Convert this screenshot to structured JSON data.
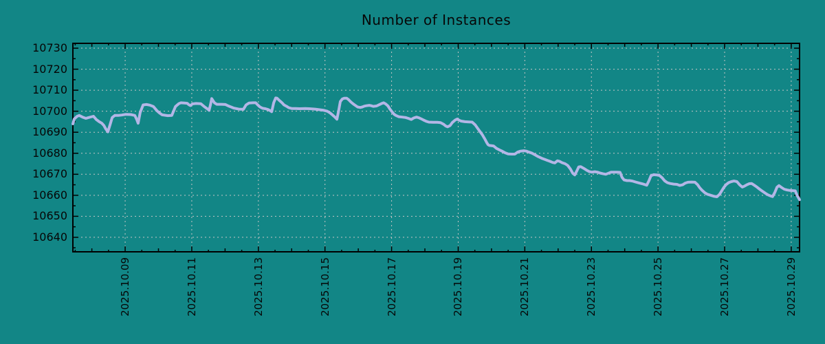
{
  "title": "Number of Instances",
  "chart_data": {
    "type": "line",
    "title": "Number of Instances",
    "legend": false,
    "grid": true,
    "colors": {
      "background": "#128686",
      "line": "#b3b6e6",
      "grid": "#c6c6c6",
      "axis": "#000000",
      "text": "#060606"
    },
    "x_axis": {
      "unit": "date, fractional day of 2025 October",
      "range_days": [
        7.43,
        29.25
      ],
      "tick_days": [
        9,
        11,
        13,
        15,
        17,
        19,
        21,
        23,
        25,
        27,
        29
      ],
      "tick_labels": [
        "2025.10.09",
        "2025.10.11",
        "2025.10.13",
        "2025.10.15",
        "2025.10.17",
        "2025.10.19",
        "2025.10.21",
        "2025.10.23",
        "2025.10.25",
        "2025.10.27",
        "2025.10.29"
      ],
      "minor_tick_step_days": 0.5
    },
    "y_axis": {
      "range": [
        10633.1,
        10732.3
      ],
      "ticks": [
        10640,
        10650,
        10660,
        10670,
        10680,
        10690,
        10700,
        10710,
        10720,
        10730
      ],
      "minor_tick_step": 5
    },
    "series": [
      {
        "name": "Number of Instances",
        "points": [
          [
            7.43,
            10694.0
          ],
          [
            7.47,
            10696.3
          ],
          [
            7.56,
            10697.6
          ],
          [
            7.62,
            10698.0
          ],
          [
            7.72,
            10697.2
          ],
          [
            7.82,
            10696.6
          ],
          [
            7.93,
            10697.1
          ],
          [
            8.05,
            10697.6
          ],
          [
            8.13,
            10696.1
          ],
          [
            8.22,
            10695.0
          ],
          [
            8.3,
            10694.3
          ],
          [
            8.36,
            10693.2
          ],
          [
            8.42,
            10691.5
          ],
          [
            8.48,
            10690.2
          ],
          [
            8.55,
            10693.8
          ],
          [
            8.61,
            10697.0
          ],
          [
            8.69,
            10698.0
          ],
          [
            8.79,
            10698.0
          ],
          [
            8.9,
            10698.2
          ],
          [
            9.02,
            10698.5
          ],
          [
            9.17,
            10698.4
          ],
          [
            9.29,
            10698.0
          ],
          [
            9.35,
            10696.0
          ],
          [
            9.39,
            10694.3
          ],
          [
            9.45,
            10699.4
          ],
          [
            9.54,
            10703.0
          ],
          [
            9.64,
            10703.2
          ],
          [
            9.74,
            10702.9
          ],
          [
            9.85,
            10702.2
          ],
          [
            9.95,
            10700.3
          ],
          [
            10.03,
            10699.2
          ],
          [
            10.11,
            10698.3
          ],
          [
            10.28,
            10697.9
          ],
          [
            10.4,
            10698.0
          ],
          [
            10.51,
            10702.2
          ],
          [
            10.61,
            10703.6
          ],
          [
            10.67,
            10704.0
          ],
          [
            10.78,
            10703.9
          ],
          [
            10.86,
            10703.8
          ],
          [
            10.92,
            10703.0
          ],
          [
            10.96,
            10702.7
          ],
          [
            11.02,
            10703.5
          ],
          [
            11.13,
            10703.7
          ],
          [
            11.27,
            10703.6
          ],
          [
            11.39,
            10702.0
          ],
          [
            11.48,
            10701.0
          ],
          [
            11.52,
            10700.4
          ],
          [
            11.56,
            10703.0
          ],
          [
            11.6,
            10706.0
          ],
          [
            11.64,
            10705.0
          ],
          [
            11.68,
            10704.0
          ],
          [
            11.75,
            10703.3
          ],
          [
            11.89,
            10703.3
          ],
          [
            12.01,
            10703.2
          ],
          [
            12.1,
            10702.5
          ],
          [
            12.18,
            10702.0
          ],
          [
            12.26,
            10701.5
          ],
          [
            12.41,
            10701.0
          ],
          [
            12.55,
            10700.9
          ],
          [
            12.63,
            10703.0
          ],
          [
            12.72,
            10703.9
          ],
          [
            12.84,
            10704.0
          ],
          [
            12.92,
            10704.0
          ],
          [
            12.98,
            10703.0
          ],
          [
            13.05,
            10702.0
          ],
          [
            13.13,
            10701.4
          ],
          [
            13.21,
            10701.2
          ],
          [
            13.29,
            10700.8
          ],
          [
            13.36,
            10700.2
          ],
          [
            13.4,
            10699.8
          ],
          [
            13.46,
            10704.0
          ],
          [
            13.52,
            10706.3
          ],
          [
            13.56,
            10706.2
          ],
          [
            13.64,
            10705.0
          ],
          [
            13.71,
            10704.0
          ],
          [
            13.77,
            10703.0
          ],
          [
            13.85,
            10702.3
          ],
          [
            13.91,
            10701.7
          ],
          [
            14.0,
            10701.3
          ],
          [
            14.12,
            10701.3
          ],
          [
            14.24,
            10701.2
          ],
          [
            14.41,
            10701.3
          ],
          [
            14.53,
            10701.2
          ],
          [
            14.7,
            10701.0
          ],
          [
            14.84,
            10700.7
          ],
          [
            14.97,
            10700.4
          ],
          [
            15.07,
            10700.0
          ],
          [
            15.15,
            10699.2
          ],
          [
            15.23,
            10698.2
          ],
          [
            15.3,
            10697.2
          ],
          [
            15.36,
            10696.2
          ],
          [
            15.42,
            10701.0
          ],
          [
            15.46,
            10704.6
          ],
          [
            15.52,
            10705.8
          ],
          [
            15.58,
            10706.2
          ],
          [
            15.65,
            10706.2
          ],
          [
            15.71,
            10705.5
          ],
          [
            15.77,
            10704.5
          ],
          [
            15.83,
            10703.7
          ],
          [
            15.89,
            10703.0
          ],
          [
            15.98,
            10702.0
          ],
          [
            16.06,
            10701.8
          ],
          [
            16.12,
            10702.0
          ],
          [
            16.18,
            10702.4
          ],
          [
            16.24,
            10702.6
          ],
          [
            16.33,
            10702.8
          ],
          [
            16.39,
            10702.6
          ],
          [
            16.45,
            10702.3
          ],
          [
            16.55,
            10702.5
          ],
          [
            16.64,
            10703.2
          ],
          [
            16.72,
            10703.8
          ],
          [
            16.76,
            10704.0
          ],
          [
            16.82,
            10703.5
          ],
          [
            16.89,
            10702.5
          ],
          [
            16.95,
            10701.0
          ],
          [
            17.01,
            10699.8
          ],
          [
            17.07,
            10698.6
          ],
          [
            17.13,
            10698.0
          ],
          [
            17.21,
            10697.4
          ],
          [
            17.32,
            10697.2
          ],
          [
            17.42,
            10697.0
          ],
          [
            17.5,
            10696.6
          ],
          [
            17.59,
            10696.1
          ],
          [
            17.67,
            10696.8
          ],
          [
            17.75,
            10697.2
          ],
          [
            17.83,
            10696.8
          ],
          [
            17.9,
            10696.3
          ],
          [
            17.96,
            10695.8
          ],
          [
            18.04,
            10695.2
          ],
          [
            18.12,
            10694.8
          ],
          [
            18.25,
            10694.7
          ],
          [
            18.37,
            10694.7
          ],
          [
            18.47,
            10694.6
          ],
          [
            18.56,
            10693.8
          ],
          [
            18.62,
            10693.0
          ],
          [
            18.68,
            10692.6
          ],
          [
            18.76,
            10693.2
          ],
          [
            18.82,
            10694.6
          ],
          [
            18.91,
            10695.8
          ],
          [
            18.97,
            10696.3
          ],
          [
            19.03,
            10695.7
          ],
          [
            19.09,
            10695.3
          ],
          [
            19.2,
            10695.0
          ],
          [
            19.32,
            10694.9
          ],
          [
            19.42,
            10694.8
          ],
          [
            19.51,
            10693.5
          ],
          [
            19.59,
            10691.7
          ],
          [
            19.67,
            10690.0
          ],
          [
            19.73,
            10688.7
          ],
          [
            19.81,
            10686.5
          ],
          [
            19.86,
            10685.0
          ],
          [
            19.9,
            10684.0
          ],
          [
            19.94,
            10683.7
          ],
          [
            20.06,
            10683.5
          ],
          [
            20.15,
            10682.3
          ],
          [
            20.25,
            10681.5
          ],
          [
            20.33,
            10680.9
          ],
          [
            20.41,
            10680.2
          ],
          [
            20.5,
            10679.7
          ],
          [
            20.6,
            10679.6
          ],
          [
            20.7,
            10679.6
          ],
          [
            20.78,
            10680.5
          ],
          [
            20.87,
            10681.0
          ],
          [
            20.97,
            10681.2
          ],
          [
            21.05,
            10681.0
          ],
          [
            21.13,
            10680.5
          ],
          [
            21.22,
            10680.0
          ],
          [
            21.3,
            10679.3
          ],
          [
            21.4,
            10678.4
          ],
          [
            21.51,
            10677.6
          ],
          [
            21.61,
            10677.0
          ],
          [
            21.69,
            10676.5
          ],
          [
            21.75,
            10676.2
          ],
          [
            21.84,
            10675.6
          ],
          [
            21.9,
            10675.4
          ],
          [
            21.98,
            10676.4
          ],
          [
            22.04,
            10676.2
          ],
          [
            22.12,
            10675.5
          ],
          [
            22.21,
            10675.0
          ],
          [
            22.29,
            10674.2
          ],
          [
            22.37,
            10672.5
          ],
          [
            22.44,
            10670.5
          ],
          [
            22.5,
            10669.7
          ],
          [
            22.56,
            10671.5
          ],
          [
            22.62,
            10673.5
          ],
          [
            22.68,
            10673.6
          ],
          [
            22.77,
            10672.8
          ],
          [
            22.85,
            10672.0
          ],
          [
            22.93,
            10671.3
          ],
          [
            23.01,
            10671.0
          ],
          [
            23.1,
            10671.2
          ],
          [
            23.18,
            10671.0
          ],
          [
            23.26,
            10670.6
          ],
          [
            23.34,
            10670.3
          ],
          [
            23.43,
            10670.0
          ],
          [
            23.51,
            10670.5
          ],
          [
            23.59,
            10671.0
          ],
          [
            23.67,
            10671.0
          ],
          [
            23.78,
            10671.0
          ],
          [
            23.86,
            10670.9
          ],
          [
            23.92,
            10668.5
          ],
          [
            23.98,
            10667.3
          ],
          [
            24.07,
            10667.0
          ],
          [
            24.15,
            10667.0
          ],
          [
            24.23,
            10666.8
          ],
          [
            24.33,
            10666.3
          ],
          [
            24.44,
            10665.8
          ],
          [
            24.56,
            10665.3
          ],
          [
            24.66,
            10664.8
          ],
          [
            24.73,
            10667.0
          ],
          [
            24.79,
            10669.3
          ],
          [
            24.87,
            10669.8
          ],
          [
            24.95,
            10669.7
          ],
          [
            25.03,
            10669.6
          ],
          [
            25.12,
            10668.4
          ],
          [
            25.2,
            10666.9
          ],
          [
            25.28,
            10666.0
          ],
          [
            25.36,
            10665.6
          ],
          [
            25.47,
            10665.3
          ],
          [
            25.57,
            10665.2
          ],
          [
            25.65,
            10664.7
          ],
          [
            25.74,
            10665.0
          ],
          [
            25.82,
            10665.8
          ],
          [
            25.9,
            10666.2
          ],
          [
            26.01,
            10666.3
          ],
          [
            26.11,
            10666.2
          ],
          [
            26.19,
            10665.0
          ],
          [
            26.25,
            10663.6
          ],
          [
            26.32,
            10662.4
          ],
          [
            26.4,
            10661.3
          ],
          [
            26.48,
            10660.5
          ],
          [
            26.58,
            10660.0
          ],
          [
            26.69,
            10659.5
          ],
          [
            26.77,
            10659.3
          ],
          [
            26.85,
            10660.5
          ],
          [
            26.91,
            10662.0
          ],
          [
            26.98,
            10663.8
          ],
          [
            27.04,
            10665.0
          ],
          [
            27.12,
            10666.0
          ],
          [
            27.2,
            10666.5
          ],
          [
            27.28,
            10666.8
          ],
          [
            27.37,
            10666.5
          ],
          [
            27.45,
            10665.0
          ],
          [
            27.53,
            10663.9
          ],
          [
            27.6,
            10664.4
          ],
          [
            27.68,
            10665.1
          ],
          [
            27.74,
            10665.5
          ],
          [
            27.81,
            10665.6
          ],
          [
            27.89,
            10664.8
          ],
          [
            27.97,
            10663.9
          ],
          [
            28.05,
            10662.9
          ],
          [
            28.13,
            10662.0
          ],
          [
            28.22,
            10661.0
          ],
          [
            28.3,
            10660.2
          ],
          [
            28.38,
            10659.7
          ],
          [
            28.44,
            10659.4
          ],
          [
            28.51,
            10661.5
          ],
          [
            28.57,
            10663.8
          ],
          [
            28.63,
            10664.6
          ],
          [
            28.71,
            10663.7
          ],
          [
            28.79,
            10662.9
          ],
          [
            28.88,
            10662.5
          ],
          [
            28.96,
            10662.3
          ],
          [
            29.04,
            10662.2
          ],
          [
            29.12,
            10662.1
          ],
          [
            29.18,
            10659.8
          ],
          [
            29.25,
            10657.9
          ]
        ]
      }
    ]
  }
}
